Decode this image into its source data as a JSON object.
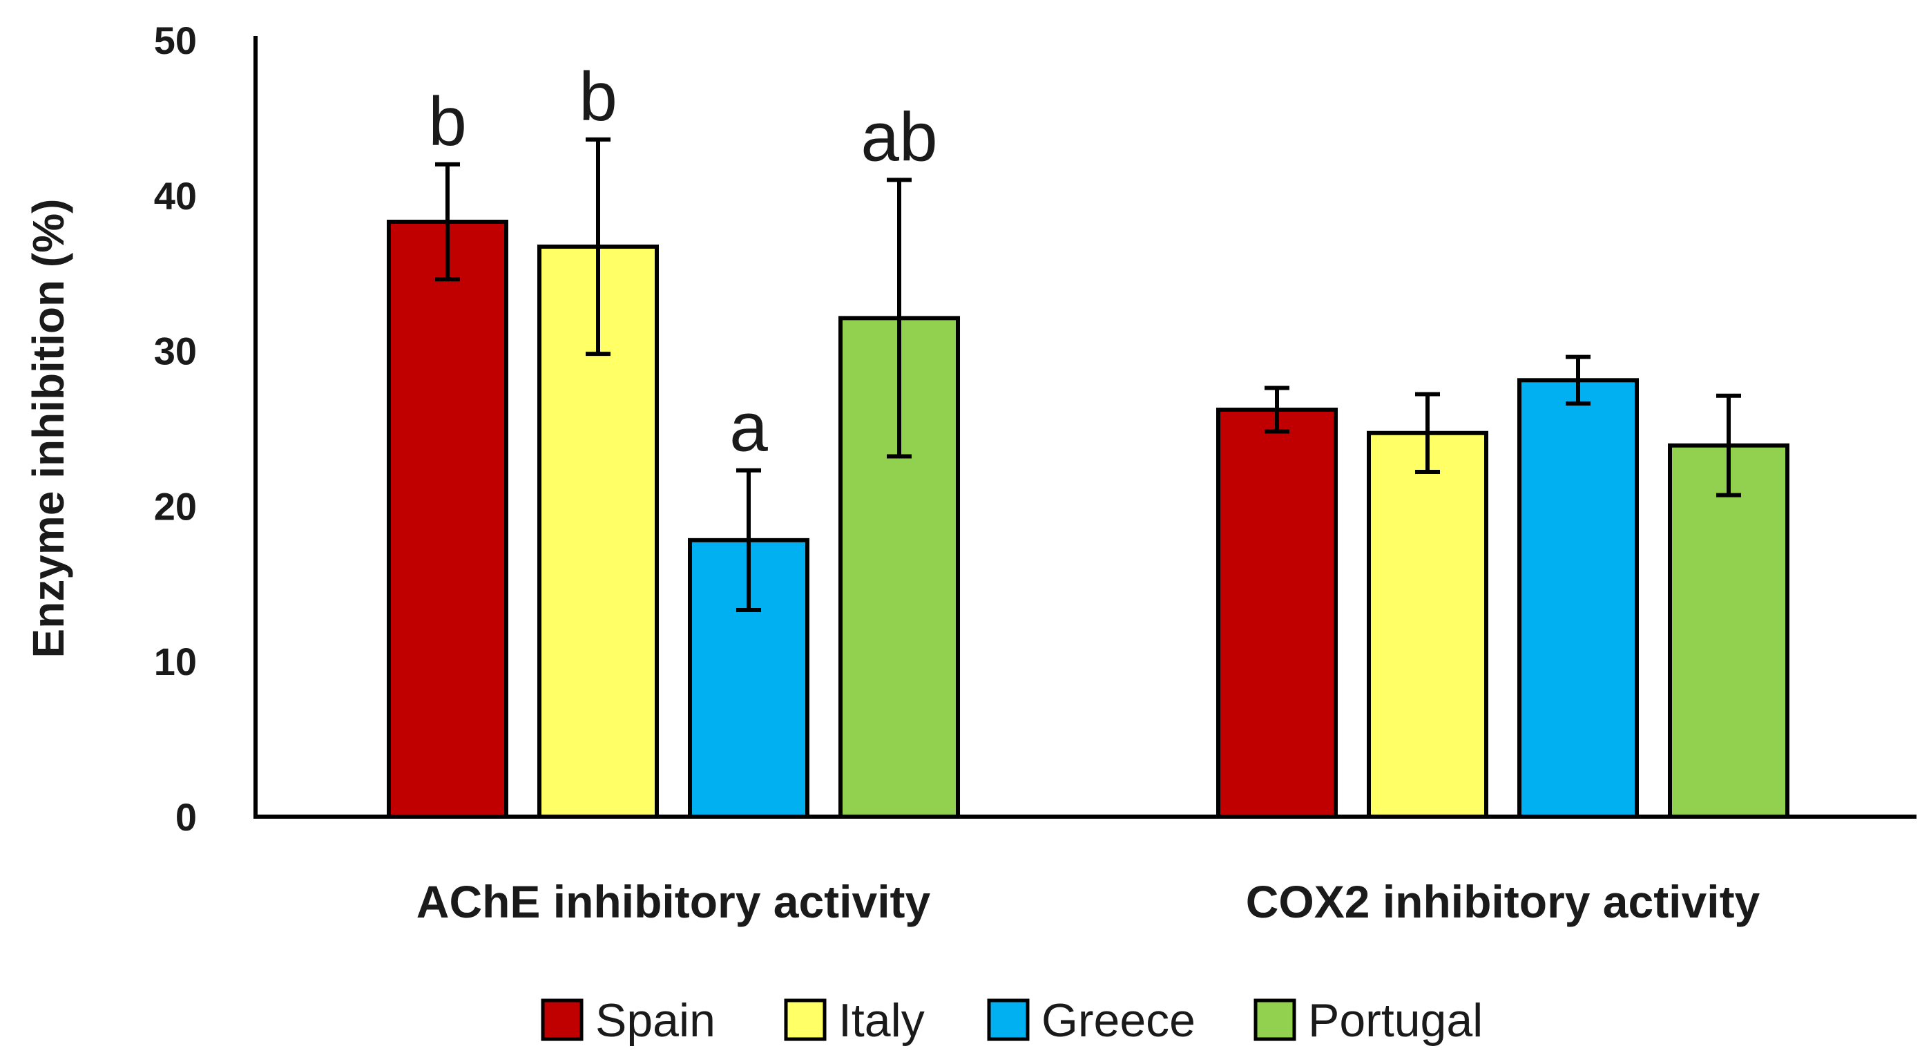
{
  "chart_data": {
    "type": "bar",
    "title": "",
    "xlabel": "",
    "ylabel": "Enzyme inhibition (%)",
    "ylim": [
      0,
      50
    ],
    "yticks": [
      0,
      10,
      20,
      30,
      40,
      50
    ],
    "grid": false,
    "legend_position": "bottom",
    "categories": [
      "AChE inhibitory activity",
      "COX2 inhibitory activity"
    ],
    "series": [
      {
        "name": "Spain",
        "color": "#c00000",
        "values": [
          38.3,
          26.2
        ],
        "errors": [
          3.7,
          1.4
        ],
        "labels": [
          "b",
          ""
        ]
      },
      {
        "name": "Italy",
        "color": "#ffff66",
        "values": [
          36.7,
          24.7
        ],
        "errors": [
          6.9,
          2.5
        ],
        "labels": [
          "b",
          ""
        ]
      },
      {
        "name": "Greece",
        "color": "#00b0f0",
        "values": [
          17.8,
          28.1
        ],
        "errors": [
          4.5,
          1.5
        ],
        "labels": [
          "a",
          ""
        ]
      },
      {
        "name": "Portugal",
        "color": "#92d050",
        "values": [
          32.1,
          23.9
        ],
        "errors": [
          8.9,
          3.2
        ],
        "labels": [
          "ab",
          ""
        ]
      }
    ]
  }
}
